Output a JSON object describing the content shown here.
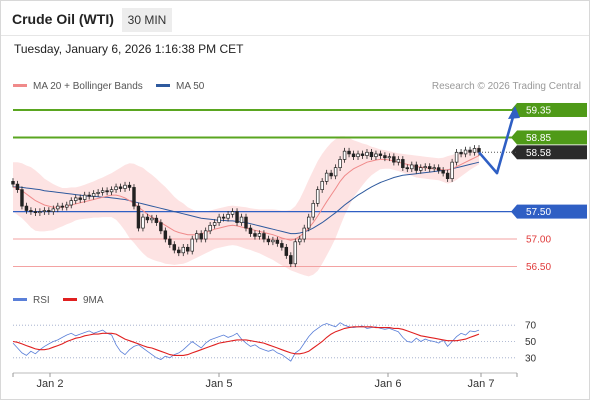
{
  "header": {
    "title": "Crude Oil (WTI)",
    "timeframe": "30 MIN",
    "datetime": "Tuesday, January 6, 2026 1:16:38 PM CET"
  },
  "legend": {
    "ma20": "MA 20 + Bollinger Bands",
    "ma50": "MA 50",
    "research": "Research © 2026 Trading Central",
    "colors": {
      "ma20": "#f08a8a",
      "ma50": "#2f5a9e"
    }
  },
  "rsi_legend": {
    "rsi": "RSI",
    "ma9": "9MA",
    "colors": {
      "rsi": "#5a7fd8",
      "ma9": "#e02020"
    }
  },
  "chart_data": [
    {
      "type": "candlestick",
      "title": "Crude Oil (WTI) 30 MIN",
      "x_tick_labels": [
        "Jan 2",
        "Jan 5",
        "Jan 6",
        "Jan 7"
      ],
      "ylim": [
        56.2,
        59.55
      ],
      "levels": [
        {
          "value": 59.35,
          "label": "59.35",
          "kind": "target"
        },
        {
          "value": 58.85,
          "label": "58.85",
          "kind": "target"
        },
        {
          "value": 58.58,
          "label": "58.58",
          "kind": "current"
        },
        {
          "value": 57.5,
          "label": "57.50",
          "kind": "pivot"
        },
        {
          "value": 57.0,
          "label": "57.00",
          "kind": "support"
        },
        {
          "value": 56.5,
          "label": "56.50",
          "kind": "support"
        }
      ],
      "close": [
        58.0,
        57.9,
        57.6,
        57.52,
        57.5,
        57.48,
        57.5,
        57.52,
        57.5,
        57.55,
        57.6,
        57.58,
        57.62,
        57.7,
        57.75,
        57.72,
        57.8,
        57.78,
        57.83,
        57.85,
        57.88,
        57.86,
        57.9,
        57.95,
        57.92,
        57.98,
        57.94,
        57.6,
        57.2,
        57.4,
        57.35,
        57.38,
        57.3,
        57.15,
        57.0,
        56.9,
        56.8,
        56.75,
        56.85,
        56.78,
        57.0,
        57.1,
        57.0,
        57.15,
        57.25,
        57.3,
        57.4,
        57.38,
        57.45,
        57.5,
        57.3,
        57.4,
        57.2,
        57.1,
        57.05,
        57.1,
        57.0,
        56.95,
        56.98,
        56.92,
        56.85,
        56.7,
        56.55,
        56.95,
        57.0,
        57.2,
        57.4,
        57.65,
        57.9,
        58.05,
        58.2,
        58.15,
        58.3,
        58.45,
        58.6,
        58.55,
        58.5,
        58.55,
        58.52,
        58.58,
        58.5,
        58.55,
        58.52,
        58.48,
        58.5,
        58.4,
        58.45,
        58.3,
        58.28,
        58.35,
        58.25,
        58.3,
        58.32,
        58.28,
        58.3,
        58.25,
        58.2,
        58.1,
        58.4,
        58.58,
        58.55,
        58.62,
        58.58,
        58.65,
        58.58
      ],
      "ma20": [
        57.95,
        57.92,
        57.88,
        57.82,
        57.76,
        57.7,
        57.66,
        57.62,
        57.6,
        57.58,
        57.58,
        57.58,
        57.6,
        57.62,
        57.64,
        57.66,
        57.68,
        57.7,
        57.72,
        57.74,
        57.76,
        57.78,
        57.8,
        57.8,
        57.78,
        57.75,
        57.7,
        57.65,
        57.58,
        57.52,
        57.45,
        57.4,
        57.35,
        57.3,
        57.25,
        57.2,
        57.15,
        57.12,
        57.1,
        57.08,
        57.08,
        57.08,
        57.1,
        57.12,
        57.15,
        57.18,
        57.2,
        57.22,
        57.24,
        57.25,
        57.24,
        57.22,
        57.2,
        57.18,
        57.16,
        57.14,
        57.12,
        57.1,
        57.08,
        57.05,
        57.02,
        57.0,
        56.98,
        57.0,
        57.05,
        57.12,
        57.2,
        57.3,
        57.42,
        57.55,
        57.68,
        57.8,
        57.92,
        58.05,
        58.15,
        58.22,
        58.28,
        58.32,
        58.36,
        58.4,
        58.42,
        58.44,
        58.45,
        58.45,
        58.44,
        58.42,
        58.4,
        58.38,
        58.36,
        58.34,
        58.32,
        58.31,
        58.3,
        58.29,
        58.28,
        58.27,
        58.26,
        58.26,
        58.28,
        58.32,
        58.36,
        58.4,
        58.44,
        58.48,
        58.52
      ],
      "ma50": [
        57.95,
        57.95,
        57.94,
        57.93,
        57.92,
        57.91,
        57.9,
        57.88,
        57.87,
        57.86,
        57.85,
        57.84,
        57.83,
        57.82,
        57.81,
        57.8,
        57.79,
        57.78,
        57.78,
        57.77,
        57.76,
        57.76,
        57.75,
        57.74,
        57.73,
        57.72,
        57.7,
        57.68,
        57.66,
        57.64,
        57.62,
        57.6,
        57.58,
        57.56,
        57.54,
        57.52,
        57.5,
        57.48,
        57.46,
        57.44,
        57.42,
        57.4,
        57.38,
        57.37,
        57.36,
        57.35,
        57.34,
        57.34,
        57.33,
        57.33,
        57.32,
        57.31,
        57.3,
        57.28,
        57.26,
        57.24,
        57.22,
        57.2,
        57.18,
        57.16,
        57.14,
        57.12,
        57.1,
        57.1,
        57.11,
        57.13,
        57.16,
        57.2,
        57.25,
        57.3,
        57.36,
        57.42,
        57.48,
        57.55,
        57.62,
        57.68,
        57.74,
        57.8,
        57.85,
        57.9,
        57.95,
        57.99,
        58.03,
        58.06,
        58.09,
        58.12,
        58.14,
        58.16,
        58.17,
        58.18,
        58.19,
        58.2,
        58.21,
        58.22,
        58.23,
        58.24,
        58.25,
        58.26,
        58.28,
        58.3,
        58.32,
        58.34,
        58.36,
        58.38,
        58.4
      ],
      "bb_width": [
        0.45,
        0.48,
        0.5,
        0.52,
        0.55,
        0.55,
        0.52,
        0.48,
        0.45,
        0.42,
        0.38,
        0.35,
        0.33,
        0.32,
        0.3,
        0.3,
        0.31,
        0.32,
        0.33,
        0.35,
        0.36,
        0.38,
        0.4,
        0.45,
        0.52,
        0.6,
        0.68,
        0.72,
        0.75,
        0.78,
        0.78,
        0.77,
        0.75,
        0.72,
        0.7,
        0.66,
        0.62,
        0.58,
        0.55,
        0.5,
        0.46,
        0.42,
        0.4,
        0.38,
        0.37,
        0.36,
        0.36,
        0.36,
        0.36,
        0.36,
        0.36,
        0.37,
        0.38,
        0.38,
        0.39,
        0.4,
        0.42,
        0.44,
        0.46,
        0.48,
        0.5,
        0.52,
        0.55,
        0.6,
        0.68,
        0.78,
        0.88,
        0.95,
        1.0,
        1.0,
        0.98,
        0.95,
        0.9,
        0.82,
        0.72,
        0.62,
        0.52,
        0.45,
        0.38,
        0.32,
        0.26,
        0.22,
        0.18,
        0.17,
        0.16,
        0.16,
        0.16,
        0.17,
        0.18,
        0.19,
        0.2,
        0.2,
        0.2,
        0.2,
        0.2,
        0.2,
        0.22,
        0.25,
        0.25,
        0.24,
        0.22,
        0.2,
        0.18,
        0.17,
        0.16
      ],
      "forecast_path": [
        58.58,
        58.2,
        59.35
      ]
    },
    {
      "type": "line",
      "title": "RSI",
      "y_tick_labels": [
        "70",
        "50",
        "30"
      ],
      "ylim": [
        20,
        80
      ],
      "series": [
        {
          "name": "RSI",
          "values": [
            48,
            42,
            36,
            33,
            38,
            35,
            40,
            44,
            47,
            50,
            52,
            55,
            58,
            60,
            57,
            59,
            61,
            63,
            60,
            62,
            64,
            60,
            58,
            46,
            38,
            34,
            40,
            44,
            46,
            42,
            38,
            34,
            30,
            28,
            32,
            30,
            34,
            36,
            40,
            45,
            50,
            46,
            42,
            48,
            52,
            54,
            56,
            58,
            55,
            57,
            60,
            53,
            48,
            44,
            46,
            42,
            40,
            38,
            40,
            36,
            34,
            30,
            26,
            36,
            40,
            48,
            56,
            62,
            66,
            70,
            72,
            70,
            68,
            73,
            70,
            68,
            67,
            68,
            69,
            66,
            67,
            68,
            66,
            65,
            66,
            64,
            62,
            55,
            50,
            49,
            54,
            50,
            53,
            51,
            50,
            48,
            52,
            44,
            50,
            56,
            60,
            58,
            63,
            62,
            64
          ]
        },
        {
          "name": "9MA",
          "values": [
            50,
            49,
            47,
            45,
            43,
            41,
            40,
            40,
            41,
            43,
            45,
            47,
            50,
            52,
            54,
            55,
            57,
            58,
            59,
            59,
            60,
            60,
            60,
            59,
            56,
            53,
            51,
            49,
            47,
            45,
            43,
            42,
            40,
            38,
            36,
            34,
            33,
            33,
            33,
            34,
            36,
            38,
            40,
            42,
            44,
            46,
            48,
            49,
            50,
            51,
            52,
            52,
            52,
            51,
            50,
            49,
            48,
            46,
            44,
            42,
            40,
            38,
            36,
            35,
            35,
            36,
            38,
            42,
            46,
            50,
            55,
            59,
            62,
            64,
            66,
            67,
            68,
            68,
            68,
            68,
            68,
            67,
            67,
            67,
            67,
            66,
            66,
            65,
            63,
            61,
            59,
            57,
            56,
            55,
            54,
            53,
            52,
            51,
            51,
            51,
            52,
            53,
            55,
            57,
            59
          ]
        }
      ]
    }
  ]
}
